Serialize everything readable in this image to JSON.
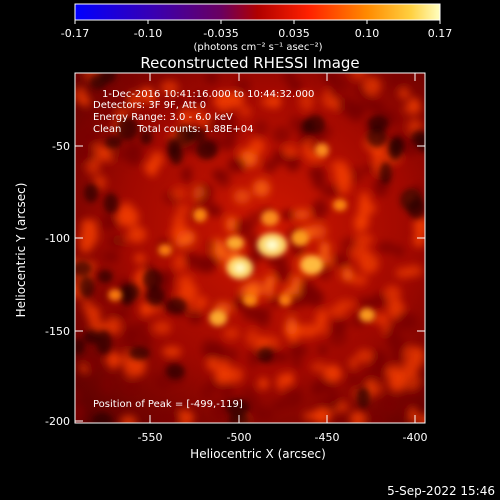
{
  "colorbar": {
    "tick_labels": [
      "-0.17",
      "-0.10",
      "-0.035",
      "0.035",
      "0.10",
      "0.17"
    ],
    "unit_label": "(photons cm⁻² s⁻¹ asec⁻²)"
  },
  "image": {
    "title": "Reconstructed RHESSI Image",
    "info_lines": [
      "1-Dec-2016 10:41:16.000 to 10:44:32.000",
      "Detectors: 3F 9F, Att 0",
      "Energy Range: 3.0 - 6.0 keV",
      "Clean     Total counts: 1.88E+04"
    ],
    "peak_label": "Position of Peak = [-499,-119]"
  },
  "axes": {
    "xlabel": "Heliocentric X (arcsec)",
    "ylabel": "Heliocentric Y (arcsec)",
    "x_ticks": [
      "-550",
      "-500",
      "-450",
      "-400"
    ],
    "y_ticks": [
      "-50",
      "-100",
      "-150",
      "-200"
    ]
  },
  "footer": {
    "timestamp": "5-Sep-2022 15:46"
  },
  "colors": {
    "background": "#000000",
    "text": "#ffffff"
  }
}
